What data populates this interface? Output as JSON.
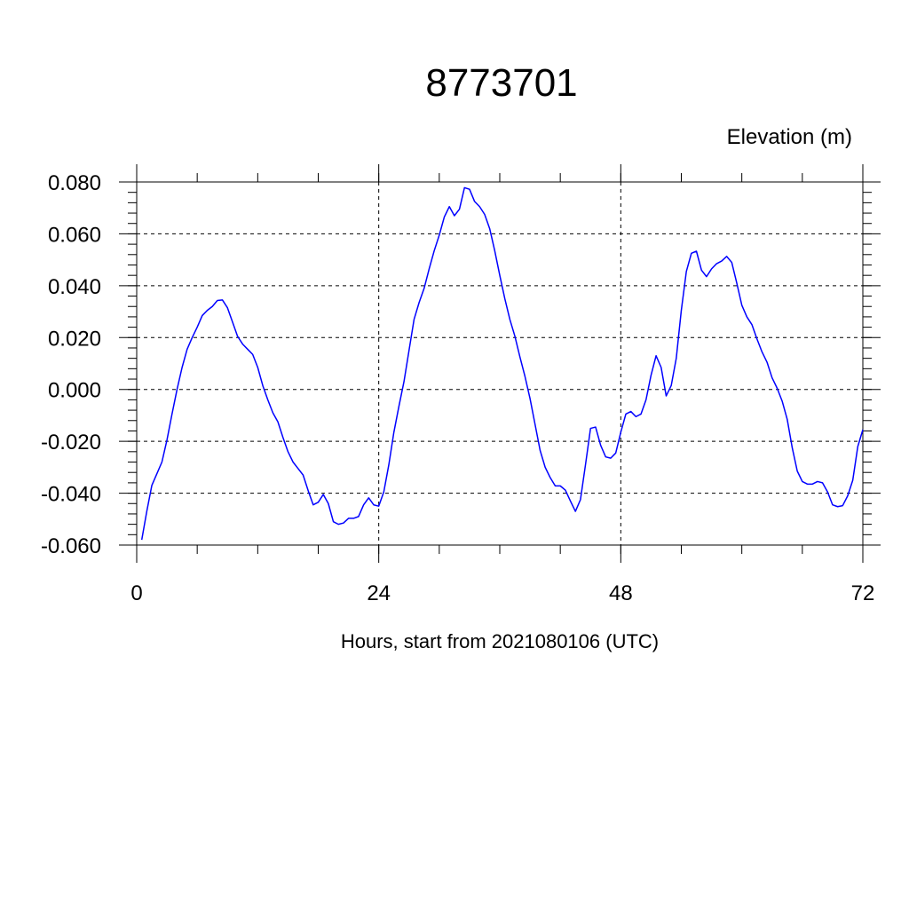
{
  "chart_data": {
    "type": "line",
    "title": "8773701",
    "ylabel": "Elevation (m)",
    "xlabel": "Hours, start from 2021080106 (UTC)",
    "xlim": [
      0,
      72
    ],
    "ylim": [
      -0.06,
      0.08
    ],
    "x_ticks": [
      0,
      24,
      48,
      72
    ],
    "x_tick_labels": [
      "0",
      "24",
      "48",
      "72"
    ],
    "y_ticks": [
      -0.06,
      -0.04,
      -0.02,
      0.0,
      0.02,
      0.04,
      0.06,
      0.08
    ],
    "y_tick_labels": [
      "-0.060",
      "-0.040",
      "-0.020",
      "0.000",
      "0.020",
      "0.040",
      "0.060",
      "0.080"
    ],
    "grid": true,
    "legend": "none",
    "colors": {
      "series": "#0000ff",
      "axis": "#000000"
    },
    "series": [
      {
        "x": [
          0.5,
          1.0,
          1.5,
          2.0,
          2.5,
          3.0,
          3.5,
          4.0,
          4.5,
          5.0,
          5.5,
          6.0,
          6.5,
          7.0,
          7.5,
          8.0,
          8.5,
          9.0,
          9.5,
          10.0,
          10.5,
          11.0,
          11.5,
          12.0,
          12.5,
          13.0,
          13.5,
          14.0,
          14.5,
          15.0,
          15.5,
          16.0,
          16.5,
          17.0,
          17.5,
          18.0,
          18.5,
          19.0,
          19.5,
          20.0,
          20.5,
          21.0,
          21.5,
          22.0,
          22.5,
          23.0,
          23.5,
          24.0,
          24.5,
          25.0,
          25.5,
          26.0,
          26.5,
          27.0,
          27.5,
          28.0,
          28.5,
          29.0,
          29.5,
          30.0,
          30.5,
          31.0,
          31.5,
          32.0,
          32.5,
          33.0,
          33.5,
          34.0,
          34.5,
          35.0,
          35.5,
          36.0,
          36.5,
          37.0,
          37.5,
          38.0,
          38.5,
          39.0,
          39.5,
          40.0,
          40.5,
          41.0,
          41.5,
          42.0,
          42.5,
          43.0,
          43.5,
          44.0,
          44.5,
          45.0,
          45.5,
          46.0,
          46.5,
          47.0,
          47.5,
          48.0,
          48.5,
          49.0,
          49.5,
          50.0,
          50.5,
          51.0,
          51.5,
          52.0,
          52.5,
          53.0,
          53.5,
          54.0,
          54.5,
          55.0,
          55.5,
          56.0,
          56.5,
          57.0,
          57.5,
          58.0,
          58.5,
          59.0,
          59.5,
          60.0,
          60.5,
          61.0,
          61.5,
          62.0,
          62.5,
          63.0,
          63.5,
          64.0,
          64.5,
          65.0,
          65.5,
          66.0,
          66.5,
          67.0,
          67.5,
          68.0,
          68.5,
          69.0,
          69.5,
          70.0,
          70.5,
          71.0,
          71.5,
          72.0
        ],
        "y": [
          -0.058,
          -0.047,
          -0.037,
          -0.0325,
          -0.028,
          -0.0195,
          -0.0095,
          0.0,
          0.0085,
          0.0155,
          0.02,
          0.024,
          0.0285,
          0.0305,
          0.032,
          0.0343,
          0.0345,
          0.0315,
          0.026,
          0.0205,
          0.0175,
          0.0155,
          0.0135,
          0.0085,
          0.0015,
          -0.004,
          -0.009,
          -0.0125,
          -0.0185,
          -0.024,
          -0.028,
          -0.0305,
          -0.033,
          -0.039,
          -0.0445,
          -0.0435,
          -0.0405,
          -0.044,
          -0.051,
          -0.052,
          -0.0515,
          -0.0497,
          -0.0497,
          -0.049,
          -0.0445,
          -0.0418,
          -0.0445,
          -0.045,
          -0.0395,
          -0.029,
          -0.0165,
          -0.0065,
          0.003,
          0.015,
          0.027,
          0.0335,
          0.039,
          0.0465,
          0.0535,
          0.0595,
          0.0665,
          0.0705,
          0.067,
          0.0695,
          0.0778,
          0.0772,
          0.0725,
          0.0705,
          0.0675,
          0.062,
          0.0535,
          0.044,
          0.035,
          0.027,
          0.0205,
          0.0125,
          0.005,
          -0.0035,
          -0.0135,
          -0.0235,
          -0.03,
          -0.034,
          -0.0372,
          -0.0372,
          -0.0388,
          -0.043,
          -0.047,
          -0.0425,
          -0.029,
          -0.015,
          -0.0145,
          -0.0215,
          -0.026,
          -0.0265,
          -0.0245,
          -0.0165,
          -0.0095,
          -0.0085,
          -0.0105,
          -0.0095,
          -0.004,
          0.0055,
          0.013,
          0.0085,
          -0.0025,
          0.0015,
          0.012,
          0.0305,
          0.0455,
          0.0525,
          0.0533,
          0.046,
          0.0435,
          0.0465,
          0.0485,
          0.0495,
          0.0513,
          0.049,
          0.041,
          0.0325,
          0.028,
          0.025,
          0.0195,
          0.0145,
          0.0105,
          0.0045,
          0.0005,
          -0.0045,
          -0.0115,
          -0.0225,
          -0.0315,
          -0.0355,
          -0.0365,
          -0.0365,
          -0.0355,
          -0.036,
          -0.0395,
          -0.0445,
          -0.0452,
          -0.0448,
          -0.041,
          -0.035,
          -0.022,
          -0.0155
        ]
      }
    ]
  }
}
